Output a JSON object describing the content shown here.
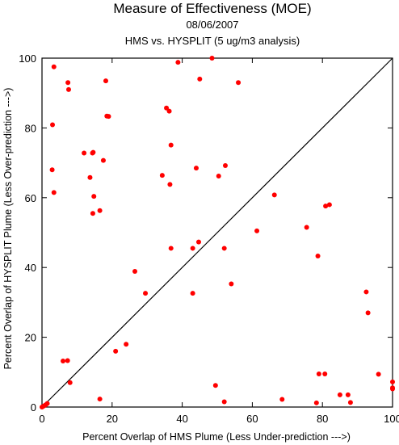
{
  "chart_data": {
    "type": "scatter",
    "title": "Measure of Effectiveness (MOE)",
    "subtitle_date": "08/06/2007",
    "subtitle_analysis": "HMS vs. HYSPLIT  (5 ug/m3 analysis)",
    "xlabel": "Percent Overlap of HMS Plume (Less Under-prediction --->)",
    "ylabel": "Percent Overlap of HYSPLIT Plume (Less Over-prediction --->)",
    "xlim": [
      0,
      100
    ],
    "ylim": [
      0,
      100
    ],
    "xticks": [
      0,
      20,
      40,
      60,
      80,
      100
    ],
    "yticks": [
      0,
      20,
      40,
      60,
      80,
      100
    ],
    "grid": false,
    "reference_line": "y = x",
    "marker_color": "#ff0000",
    "line_color": "#000000",
    "points": [
      [
        48.5,
        100
      ],
      [
        38.8,
        98.8
      ],
      [
        3.4,
        97.5
      ],
      [
        7.4,
        93.0
      ],
      [
        45.0,
        94.0
      ],
      [
        18.2,
        93.5
      ],
      [
        56.0,
        93.0
      ],
      [
        7.6,
        91.0
      ],
      [
        3.0,
        80.9
      ],
      [
        35.5,
        85.7
      ],
      [
        36.3,
        84.8
      ],
      [
        18.5,
        83.4
      ],
      [
        19.0,
        83.3
      ],
      [
        36.8,
        75.1
      ],
      [
        12.0,
        72.8
      ],
      [
        14.4,
        72.8
      ],
      [
        14.6,
        73.0
      ],
      [
        17.5,
        70.7
      ],
      [
        2.9,
        68.0
      ],
      [
        44.0,
        68.5
      ],
      [
        34.3,
        66.4
      ],
      [
        52.3,
        69.2
      ],
      [
        50.4,
        66.2
      ],
      [
        13.7,
        65.8
      ],
      [
        36.5,
        63.8
      ],
      [
        3.4,
        61.5
      ],
      [
        66.3,
        60.8
      ],
      [
        14.8,
        60.4
      ],
      [
        80.9,
        57.6
      ],
      [
        82.0,
        58.0
      ],
      [
        16.5,
        56.3
      ],
      [
        14.5,
        55.5
      ],
      [
        75.5,
        51.5
      ],
      [
        61.3,
        50.5
      ],
      [
        44.7,
        47.3
      ],
      [
        43.0,
        45.5
      ],
      [
        36.8,
        45.5
      ],
      [
        52.0,
        45.5
      ],
      [
        78.7,
        43.3
      ],
      [
        26.5,
        38.9
      ],
      [
        54.0,
        35.3
      ],
      [
        29.5,
        32.6
      ],
      [
        43.0,
        32.6
      ],
      [
        92.5,
        33.0
      ],
      [
        93.0,
        27.0
      ],
      [
        24.0,
        18.0
      ],
      [
        21.0,
        16.0
      ],
      [
        6.0,
        13.2
      ],
      [
        7.3,
        13.3
      ],
      [
        8.0,
        7.0
      ],
      [
        79.0,
        9.5
      ],
      [
        80.7,
        9.5
      ],
      [
        96.0,
        9.4
      ],
      [
        100.0,
        7.2
      ],
      [
        100.0,
        5.5
      ],
      [
        49.5,
        6.2
      ],
      [
        85.0,
        3.5
      ],
      [
        87.3,
        3.5
      ],
      [
        100.0,
        5.2
      ],
      [
        16.5,
        2.3
      ],
      [
        52.0,
        1.5
      ],
      [
        68.5,
        2.2
      ],
      [
        78.3,
        1.2
      ],
      [
        88.0,
        1.3
      ],
      [
        1.5,
        1.0
      ],
      [
        1.0,
        0.6
      ],
      [
        0.5,
        0.3
      ],
      [
        0.0,
        0.0
      ]
    ]
  }
}
